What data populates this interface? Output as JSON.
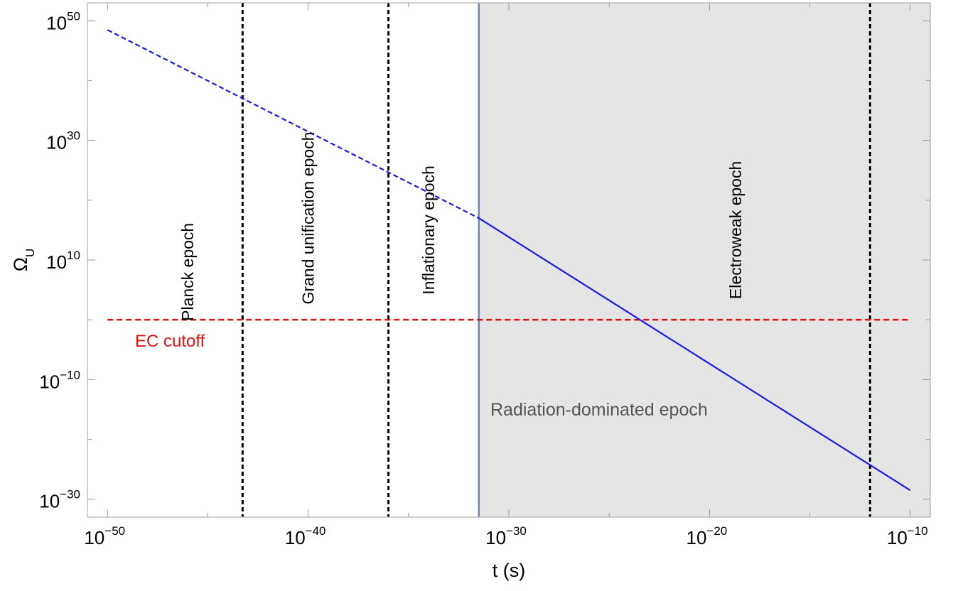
{
  "chart_data": {
    "type": "line",
    "x_scale": "log",
    "y_scale": "log",
    "xlabel": "t (s)",
    "ylabel_base": "Ω",
    "ylabel_sub": "U",
    "xlim": [
      1e-51,
      1e-09
    ],
    "ylim": [
      1e-33,
      1e+53
    ],
    "x_ticks": [
      {
        "value": 1e-50,
        "base": "10",
        "exp": "−50"
      },
      {
        "value": 1e-40,
        "base": "10",
        "exp": "−40"
      },
      {
        "value": 1e-30,
        "base": "10",
        "exp": "−30"
      },
      {
        "value": 1e-20,
        "base": "10",
        "exp": "−20"
      },
      {
        "value": 1e-10,
        "base": "10",
        "exp": "−10"
      }
    ],
    "y_ticks": [
      {
        "value": 1e-30,
        "base": "10",
        "exp": "−30"
      },
      {
        "value": 1e-10,
        "base": "10",
        "exp": "−10"
      },
      {
        "value": 10000000000.0,
        "base": "10",
        "exp": "10"
      },
      {
        "value": 1e+30,
        "base": "10",
        "exp": "30"
      },
      {
        "value": 1e+50,
        "base": "10",
        "exp": "50"
      }
    ],
    "shaded_region": {
      "x_from": 3.2e-32,
      "x_to": 1e-09,
      "color": "#e5e5e5",
      "label": "Radiation-dominated epoch"
    },
    "vertical_lines": [
      {
        "x": 5.4e-44,
        "style": "dotted",
        "color": "#000000"
      },
      {
        "x": 1e-36,
        "style": "dotted",
        "color": "#000000"
      },
      {
        "x": 3.2e-32,
        "style": "solid",
        "color": "#6a86b8"
      },
      {
        "x": 1e-12,
        "style": "dotted",
        "color": "#000000"
      }
    ],
    "epoch_labels": [
      {
        "text": "Planck epoch",
        "x": 1e-46,
        "y": 100000000.0
      },
      {
        "text": "Grand unification epoch",
        "x": 1e-40,
        "y": 1e+17
      },
      {
        "text": "Inflationary epoch",
        "x": 1e-34,
        "y": 1000000000000000.0
      },
      {
        "text": "Electroweak epoch",
        "x": 2e-19,
        "y": 1000000000000000.0
      }
    ],
    "series": [
      {
        "style": "dashed",
        "color": "#1a1ae6",
        "x": [
          1e-50,
          3.2e-32
        ],
        "y": [
          3e+48,
          1e+17
        ]
      },
      {
        "style": "solid",
        "color": "#1a1ae6",
        "x": [
          3.2e-32,
          1e-10
        ],
        "y": [
          1e+17,
          3e-29
        ]
      }
    ],
    "hlines": [
      {
        "label": "EC cutoff",
        "y": 1,
        "style": "dashed",
        "color": "#e01010",
        "x_from": 1e-50,
        "x_to": 1e-10
      }
    ]
  }
}
